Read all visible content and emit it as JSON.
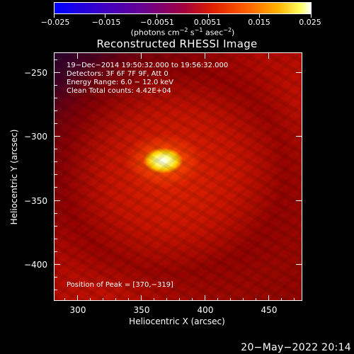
{
  "colorbar": {
    "tick_labels": [
      "−0.025",
      "−0.015",
      "−0.0051",
      "0.0051",
      "0.015",
      "0.025"
    ],
    "units_main": "(photons cm",
    "units_sup1": "−2",
    "units_mid": " s",
    "units_sup2": "−1",
    "units_mid2": " asec",
    "units_sup3": "−2",
    "units_end": ")",
    "colors": [
      "#0000ff",
      "#6a0090",
      "#e02000",
      "#ff6000",
      "#ffb000",
      "#ffff60",
      "#ffffff"
    ]
  },
  "title": "Reconstructed RHESSI Image",
  "info": {
    "line1": "19−Dec−2014 19:50:32.000 to 19:56:32.000",
    "line2": "Detectors: 3F 6F 7F 9F, Att 0",
    "line3": "Energy Range: 6.0 − 12.0 keV",
    "line4": "Clean     Total counts: 4.42E+04"
  },
  "peak_label": "Position of Peak = [370,−319]",
  "axes": {
    "xlabel": "Heliocentric X (arcsec)",
    "ylabel": "Heliocentric Y (arcsec)",
    "xticks": [
      "300",
      "350",
      "400",
      "450"
    ],
    "yticks": [
      "−250",
      "−300",
      "−350",
      "−400"
    ],
    "xlim": [
      280,
      475
    ],
    "ylim": [
      -426,
      -231
    ]
  },
  "timestamp": "20−May−2022 20:14"
}
